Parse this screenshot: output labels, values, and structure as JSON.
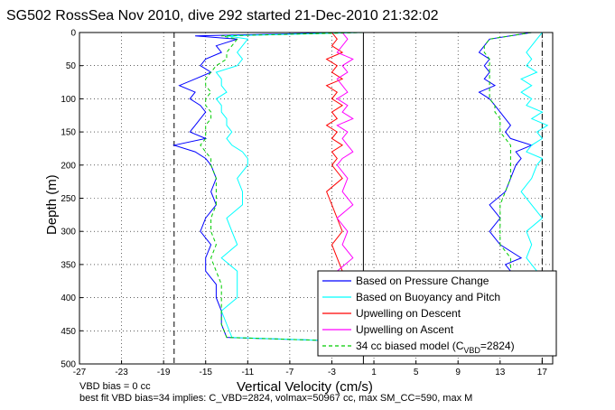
{
  "chart_data": {
    "type": "line",
    "title": "SG502 RossSea Nov 2010, dive 292 started 21-Dec-2010 21:32:02",
    "xlabel": "Vertical Velocity (cm/s)",
    "ylabel": "Depth (m)",
    "xlim": [
      -27,
      18
    ],
    "ylim": [
      500,
      0
    ],
    "y_reversed": true,
    "x_ticks": [
      -27,
      -23,
      -19,
      -15,
      -11,
      -7,
      -3,
      1,
      5,
      9,
      13,
      17
    ],
    "y_ticks": [
      0,
      50,
      100,
      150,
      200,
      250,
      300,
      350,
      400,
      450,
      500
    ],
    "grid": "dotted",
    "legend_position": "bottom-right",
    "reference_lines": [
      {
        "name": "dashed reference",
        "x": -18,
        "style": "dashed",
        "color": "#000000"
      },
      {
        "name": "solid reference",
        "x": 0,
        "style": "solid",
        "color": "#000000"
      },
      {
        "name": "dashed reference",
        "x": 17,
        "style": "dashed",
        "color": "#000000"
      }
    ],
    "series": [
      {
        "name": "Based on Pressure Change",
        "color": "#0000ff",
        "depth": [
          0,
          5,
          10,
          20,
          30,
          40,
          50,
          60,
          70,
          80,
          90,
          100,
          110,
          120,
          130,
          140,
          150,
          160,
          170,
          180,
          190,
          200,
          220,
          240,
          260,
          280,
          300,
          320,
          340,
          360,
          380,
          400,
          420,
          440,
          460,
          465
        ],
        "descent": [
          -1,
          -16,
          -12,
          -14,
          -13.5,
          -15,
          -15.5,
          -14.5,
          -16,
          -17.5,
          -16,
          -16.5,
          -15.5,
          -15,
          -15.5,
          -16,
          -16.5,
          -15,
          -18,
          -16,
          -15,
          -14.5,
          -14,
          -14.5,
          -14,
          -15,
          -15.5,
          -14.5,
          -15,
          -15,
          -14,
          -14,
          -13.5,
          -13.5,
          -13,
          -3
        ],
        "ascent": [
          16,
          12,
          11.5,
          11,
          12,
          11.5,
          12,
          11.5,
          12.5,
          11,
          12,
          12.5,
          13,
          13.5,
          14,
          13.5,
          14,
          16,
          14.5,
          15,
          14.5,
          14,
          13.5,
          12,
          13,
          12,
          13,
          15,
          13.5,
          14
        ]
      },
      {
        "name": "Based on Buoyancy and Pitch",
        "color": "#00ffff",
        "depth": [
          0,
          5,
          10,
          20,
          30,
          40,
          50,
          60,
          70,
          80,
          90,
          100,
          110,
          120,
          130,
          140,
          150,
          160,
          170,
          180,
          190,
          200,
          220,
          240,
          260,
          280,
          300,
          320,
          340,
          360,
          380,
          400,
          420,
          440,
          460,
          465
        ],
        "descent": [
          0,
          -13,
          -11,
          -11.5,
          -12,
          -11.5,
          -12,
          -14,
          -13.5,
          -13.5,
          -13,
          -14,
          -13.5,
          -13.5,
          -13,
          -13,
          -12.5,
          -13,
          -12.5,
          -11.5,
          -11,
          -11,
          -12,
          -11.5,
          -11.5,
          -13,
          -12.5,
          -12,
          -13.5,
          -12,
          -12,
          -12,
          -13.5,
          -13,
          -12.5,
          -3
        ],
        "ascent": [
          17,
          16.5,
          16,
          15.5,
          16,
          15.5,
          16.5,
          15,
          16,
          15,
          16,
          15.5,
          17,
          16,
          17.5,
          16.5,
          17,
          16,
          15.5,
          17,
          16.5,
          16,
          15,
          16,
          17,
          15.5,
          16,
          15.5,
          16,
          16.5
        ]
      },
      {
        "name": "Upwelling on Descent",
        "color": "#ff0000",
        "depth": [
          0,
          10,
          20,
          30,
          40,
          50,
          60,
          70,
          80,
          90,
          100,
          110,
          120,
          130,
          140,
          150,
          160,
          170,
          180,
          190,
          200,
          220,
          240,
          260,
          280,
          300,
          320,
          340,
          360
        ],
        "values": [
          -3,
          -2.5,
          -3,
          -2,
          -3.5,
          -2.5,
          -3,
          -2,
          -3.5,
          -2.5,
          -3,
          -2,
          -3,
          -2.5,
          -3.5,
          -2.5,
          -3,
          -2,
          -3,
          -2.5,
          -3,
          -2,
          -3.5,
          -3,
          -2.5,
          -2,
          -3,
          -2.5,
          -2
        ]
      },
      {
        "name": "Upwelling on Ascent",
        "color": "#ff00ff",
        "depth": [
          0,
          10,
          20,
          30,
          40,
          50,
          60,
          70,
          80,
          90,
          100,
          110,
          120,
          130,
          140,
          150,
          160,
          170,
          180,
          190,
          200,
          220,
          240,
          260,
          280,
          300,
          320,
          340,
          360
        ],
        "values": [
          -2,
          -1.5,
          -2,
          -2.5,
          -1,
          -2,
          -1.5,
          -2.5,
          -2,
          -1.5,
          -2.5,
          -1.5,
          -2,
          -1,
          -2.5,
          -1.5,
          -2,
          -1.5,
          -1,
          -2,
          -2.5,
          -1.5,
          -2,
          -1,
          -2.5,
          -1.5,
          -2,
          -1,
          -2.5
        ]
      },
      {
        "name": "34 cc biased model",
        "color": "#00cc00",
        "style": "dashed",
        "depth": [
          0,
          5,
          10,
          20,
          30,
          40,
          50,
          60,
          70,
          80,
          90,
          100,
          110,
          120,
          130,
          140,
          150,
          160,
          170,
          180,
          190,
          200,
          220,
          240,
          260,
          280,
          300,
          320,
          340,
          360,
          380,
          400,
          420,
          440,
          460,
          465
        ],
        "descent": [
          0,
          -13.5,
          -12,
          -12.5,
          -13,
          -13,
          -14,
          -14.5,
          -15,
          -15,
          -14.5,
          -15,
          -15,
          -14.5,
          -14.5,
          -15,
          -15,
          -15,
          -15.5,
          -15,
          -14.5,
          -14.5,
          -14,
          -14,
          -14,
          -14.5,
          -14.5,
          -14,
          -14.5,
          -14,
          -13.5,
          -13.5,
          -13.5,
          -13.5,
          -13,
          -3
        ],
        "ascent": [
          16,
          12,
          11.5,
          11.5,
          12,
          12,
          12,
          12,
          12,
          12,
          12,
          12.5,
          12.5,
          13,
          13,
          13,
          13.5,
          14,
          14,
          14,
          14,
          14,
          13.5,
          13,
          13,
          13,
          13,
          14,
          14,
          14
        ]
      }
    ],
    "ascent_depth": [
      0,
      10,
      20,
      30,
      40,
      50,
      60,
      70,
      80,
      90,
      100,
      110,
      120,
      130,
      140,
      150,
      160,
      170,
      180,
      190,
      200,
      220,
      240,
      260,
      280,
      300,
      320,
      340,
      350,
      360
    ],
    "legend": {
      "items": [
        {
          "label": "Based on Pressure Change",
          "color": "#0000ff",
          "style": "solid"
        },
        {
          "label": "Based on Buoyancy and Pitch",
          "color": "#00ffff",
          "style": "solid"
        },
        {
          "label": "Upwelling on Descent",
          "color": "#ff0000",
          "style": "solid"
        },
        {
          "label": "Upwelling on Ascent",
          "color": "#ff00ff",
          "style": "solid"
        }
      ],
      "model_label_prefix": "34 cc biased model (C",
      "model_label_sub": "VBD",
      "model_label_suffix": "=2824)"
    },
    "footnotes": [
      "VBD bias = 0 cc",
      "best fit VBD bias=34 implies: C_VBD=2824, volmax=50967 cc, max SM_CC=590, max M"
    ]
  }
}
